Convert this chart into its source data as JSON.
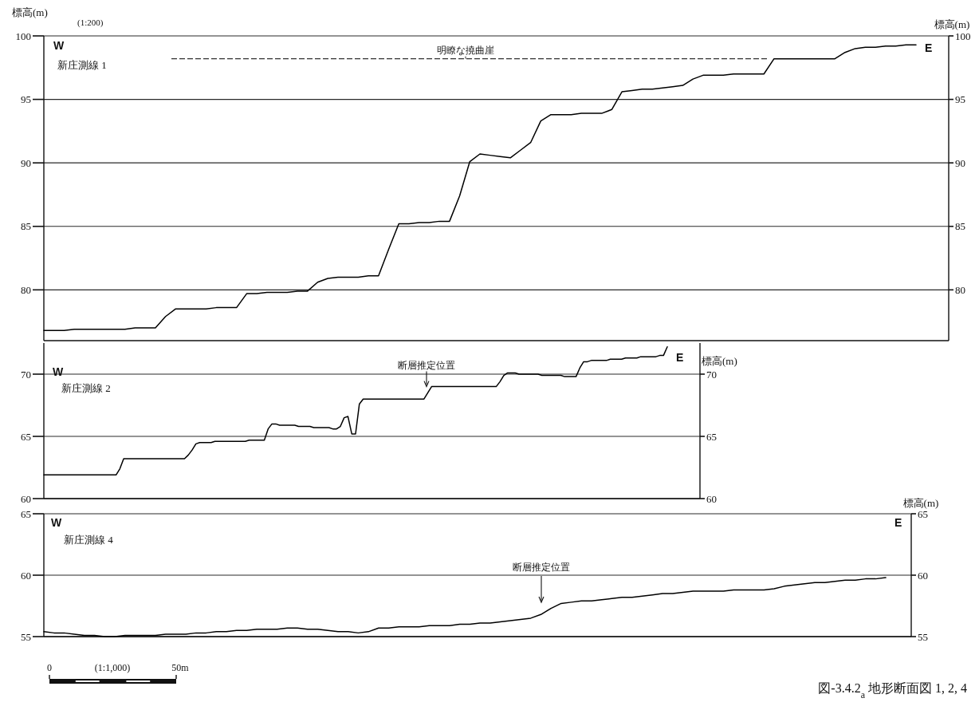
{
  "chart_data": [
    {
      "type": "line",
      "categories": [
        null,
        null,
        null,
        null,
        null,
        null,
        null,
        null,
        null,
        null,
        null,
        null,
        null,
        null,
        null,
        null,
        null,
        null,
        null,
        null,
        null,
        null,
        null,
        null,
        null,
        null,
        null,
        null,
        null,
        null,
        null,
        null,
        null,
        null,
        null,
        null,
        null,
        null,
        null,
        null,
        null,
        null,
        null,
        null,
        null,
        null,
        null,
        null,
        null,
        null,
        null,
        null,
        null,
        null,
        null,
        null,
        null,
        null,
        null,
        null,
        null,
        null,
        null,
        null,
        null,
        null,
        null,
        null,
        null,
        null,
        null,
        null,
        null,
        null,
        null,
        null,
        null,
        null,
        null,
        null,
        null,
        null,
        null,
        null,
        null,
        null,
        null
      ],
      "series": [
        {
          "color": "#000000",
          "values": [
            76.8,
            76.8,
            76.8,
            76.9,
            76.9,
            76.9,
            76.9,
            76.9,
            76.9,
            77.0,
            77.0,
            77.0,
            77.9,
            78.5,
            78.5,
            78.5,
            78.5,
            78.6,
            78.6,
            78.6,
            79.7,
            79.7,
            79.8,
            79.8,
            79.8,
            79.9,
            79.9,
            80.6,
            80.9,
            81.0,
            81.0,
            81.0,
            81.1,
            81.1,
            83.2,
            85.2,
            85.2,
            85.3,
            85.3,
            85.4,
            85.4,
            87.4,
            90.1,
            90.7,
            90.6,
            90.5,
            90.4,
            91.0,
            91.6,
            93.3,
            93.8,
            93.8,
            93.8,
            93.9,
            93.9,
            93.9,
            94.2,
            95.6,
            95.7,
            95.8,
            95.8,
            95.9,
            96.0,
            96.1,
            96.6,
            96.9,
            96.9,
            96.9,
            97.0,
            97.0,
            97.0,
            97.0,
            98.2,
            98.2,
            98.2,
            98.2,
            98.2,
            98.2,
            98.2,
            98.7,
            99.0,
            99.1,
            99.1,
            99.2,
            99.2,
            99.3,
            99.3
          ]
        }
      ],
      "ylim": [
        76,
        100
      ],
      "yticks": [
        80,
        85,
        90,
        95,
        100
      ],
      "y2lim": [
        76,
        100
      ],
      "y2ticks": [
        80,
        85,
        90,
        95,
        100
      ],
      "ylabel": "標高(m)",
      "y2label": "標高(m)",
      "grid": "y",
      "tick_labels": "y",
      "ref_lines": [
        {
          "axis": "y",
          "value": 98.2,
          "label": "明瞭な撓曲崖",
          "line_style": "dashed"
        }
      ],
      "annotations": [
        "W",
        "E",
        "新庄測線 1",
        "(1:200)"
      ]
    },
    {
      "type": "line",
      "categories": [
        null,
        null,
        null,
        null,
        null,
        null,
        null,
        null,
        null,
        null,
        null,
        null,
        null,
        null,
        null,
        null,
        null,
        null,
        null,
        null,
        null,
        null,
        null,
        null,
        null,
        null,
        null,
        null,
        null,
        null,
        null,
        null,
        null,
        null,
        null,
        null,
        null,
        null,
        null,
        null,
        null,
        null,
        null,
        null,
        null,
        null,
        null,
        null,
        null,
        null,
        null,
        null,
        null,
        null,
        null,
        null,
        null,
        null,
        null,
        null,
        null,
        null,
        null,
        null,
        null,
        null,
        null,
        null,
        null,
        null,
        null,
        null,
        null,
        null,
        null,
        null,
        null,
        null,
        null,
        null,
        null,
        null,
        null,
        null,
        null,
        null,
        null,
        null,
        null,
        null,
        null,
        null,
        null,
        null,
        null,
        null,
        null,
        null,
        null,
        null,
        null,
        null,
        null,
        null,
        null,
        null,
        null,
        null,
        null,
        null,
        null,
        null,
        null,
        null,
        null,
        null,
        null,
        null,
        null,
        null,
        null,
        null,
        null,
        null,
        null,
        null,
        null,
        null,
        null,
        null,
        null,
        null,
        null,
        null,
        null,
        null,
        null,
        null,
        null,
        null,
        null,
        null,
        null,
        null,
        null,
        null,
        null,
        null,
        null,
        null,
        null,
        null,
        null,
        null,
        null,
        null,
        null,
        null,
        null,
        null,
        null,
        null,
        null,
        null,
        null
      ],
      "series": [
        {
          "color": "#000000",
          "values": [
            61.9,
            61.9,
            61.9,
            61.9,
            61.9,
            61.9,
            61.9,
            61.9,
            61.9,
            61.9,
            61.9,
            61.9,
            61.9,
            61.9,
            61.9,
            61.9,
            61.9,
            61.9,
            61.9,
            61.9,
            62.4,
            63.2,
            63.2,
            63.2,
            63.2,
            63.2,
            63.2,
            63.2,
            63.2,
            63.2,
            63.2,
            63.2,
            63.2,
            63.2,
            63.2,
            63.2,
            63.2,
            63.2,
            63.5,
            63.9,
            64.4,
            64.5,
            64.5,
            64.5,
            64.5,
            64.6,
            64.6,
            64.6,
            64.6,
            64.6,
            64.6,
            64.6,
            64.6,
            64.6,
            64.7,
            64.7,
            64.7,
            64.7,
            64.7,
            65.6,
            66.0,
            66.0,
            65.9,
            65.9,
            65.9,
            65.9,
            65.9,
            65.8,
            65.8,
            65.8,
            65.8,
            65.7,
            65.7,
            65.7,
            65.7,
            65.7,
            65.6,
            65.6,
            65.8,
            66.5,
            66.6,
            65.2,
            65.2,
            67.6,
            68.0,
            68.0,
            68.0,
            68.0,
            68.0,
            68.0,
            68.0,
            68.0,
            68.0,
            68.0,
            68.0,
            68.0,
            68.0,
            68.0,
            68.0,
            68.0,
            68.0,
            68.5,
            69.0,
            69.0,
            69.0,
            69.0,
            69.0,
            69.0,
            69.0,
            69.0,
            69.0,
            69.0,
            69.0,
            69.0,
            69.0,
            69.0,
            69.0,
            69.0,
            69.0,
            69.0,
            69.4,
            69.9,
            70.1,
            70.1,
            70.1,
            70.0,
            70.0,
            70.0,
            70.0,
            70.0,
            70.0,
            69.9,
            69.9,
            69.9,
            69.9,
            69.9,
            69.9,
            69.8,
            69.8,
            69.8,
            69.8,
            70.5,
            71.0,
            71.0,
            71.1,
            71.1,
            71.1,
            71.1,
            71.1,
            71.2,
            71.2,
            71.2,
            71.2,
            71.3,
            71.3,
            71.3,
            71.3,
            71.4,
            71.4,
            71.4,
            71.4,
            71.4,
            71.5,
            71.5,
            72.2
          ]
        }
      ],
      "ylim": [
        60,
        72.5
      ],
      "yticks": [
        60,
        65,
        70
      ],
      "y2lim": [
        60,
        72.5
      ],
      "y2ticks": [
        60,
        65,
        70
      ],
      "y2label": "標高(m)",
      "grid": "y",
      "tick_labels": "y",
      "annotations": [
        "W",
        "E",
        "新庄測線 2",
        {
          "text": "断層推定位置",
          "y": 69
        }
      ]
    },
    {
      "type": "line",
      "categories": [
        null,
        null,
        null,
        null,
        null,
        null,
        null,
        null,
        null,
        null,
        null,
        null,
        null,
        null,
        null,
        null,
        null,
        null,
        null,
        null,
        null,
        null,
        null,
        null,
        null,
        null,
        null,
        null,
        null,
        null,
        null,
        null,
        null,
        null,
        null,
        null,
        null,
        null,
        null,
        null,
        null,
        null,
        null,
        null,
        null,
        null,
        null,
        null,
        null,
        null,
        null,
        null,
        null,
        null,
        null,
        null,
        null,
        null,
        null,
        null,
        null,
        null,
        null,
        null,
        null,
        null,
        null,
        null,
        null,
        null,
        null,
        null,
        null,
        null,
        null,
        null,
        null,
        null,
        null,
        null,
        null,
        null,
        null,
        null
      ],
      "series": [
        {
          "color": "#000000",
          "values": [
            55.4,
            55.3,
            55.3,
            55.2,
            55.1,
            55.1,
            55.0,
            55.0,
            55.1,
            55.1,
            55.1,
            55.1,
            55.2,
            55.2,
            55.2,
            55.3,
            55.3,
            55.4,
            55.4,
            55.5,
            55.5,
            55.6,
            55.6,
            55.6,
            55.7,
            55.7,
            55.6,
            55.6,
            55.5,
            55.4,
            55.4,
            55.3,
            55.4,
            55.7,
            55.7,
            55.8,
            55.8,
            55.8,
            55.9,
            55.9,
            55.9,
            56.0,
            56.0,
            56.1,
            56.1,
            56.2,
            56.3,
            56.4,
            56.5,
            56.8,
            57.3,
            57.7,
            57.8,
            57.9,
            57.9,
            58.0,
            58.1,
            58.2,
            58.2,
            58.3,
            58.4,
            58.5,
            58.5,
            58.6,
            58.7,
            58.7,
            58.7,
            58.7,
            58.8,
            58.8,
            58.8,
            58.8,
            58.9,
            59.1,
            59.2,
            59.3,
            59.4,
            59.4,
            59.5,
            59.6,
            59.6,
            59.7,
            59.7,
            59.8
          ]
        }
      ],
      "ylim": [
        55,
        65
      ],
      "yticks": [
        55,
        60,
        65
      ],
      "y2lim": [
        55,
        65
      ],
      "y2ticks": [
        55,
        60,
        65
      ],
      "y2label": "標高(m)",
      "grid": "y",
      "tick_labels": "y",
      "annotations": [
        "W",
        "E",
        "新庄測線 4",
        "断層推定位置"
      ]
    },
    {
      "type": "other",
      "annotations": [
        "0",
        "(1:1,000)",
        "50m",
        "図-3.4.2$_{a}$ 地形断面図 1, 2, 4"
      ]
    }
  ]
}
